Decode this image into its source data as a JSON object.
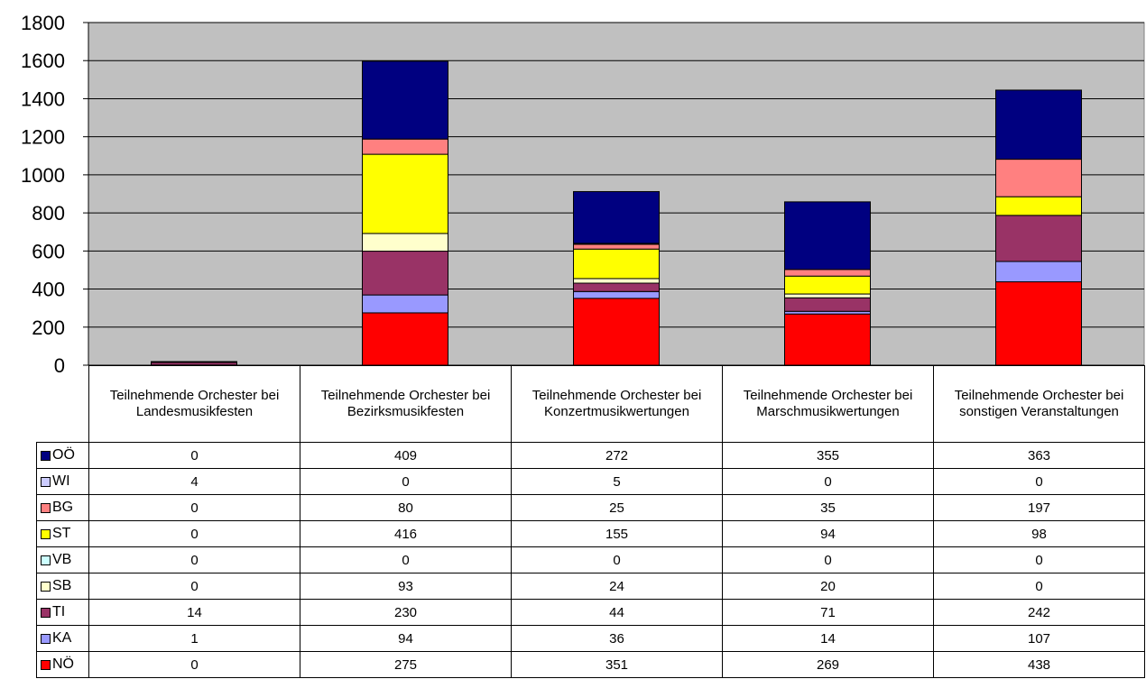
{
  "chart_data": {
    "type": "stacked_bar",
    "categories": [
      "Teilnehmende Orchester bei Landesmusikfesten",
      "Teilnehmende Orchester bei Bezirksmusikfesten",
      "Teilnehmende Orchester bei Konzertmusikwertungen",
      "Teilnehmende Orchester bei Marschmusikwertungen",
      "Teilnehmende Orchester bei sonstigen Veranstaltungen"
    ],
    "series": [
      {
        "name": "OÖ",
        "color": "#000080",
        "values": [
          0,
          409,
          272,
          355,
          363
        ]
      },
      {
        "name": "WI",
        "color": "#ccccff",
        "values": [
          4,
          0,
          5,
          0,
          0
        ]
      },
      {
        "name": "BG",
        "color": "#ff8080",
        "values": [
          0,
          80,
          25,
          35,
          197
        ]
      },
      {
        "name": "ST",
        "color": "#ffff00",
        "values": [
          0,
          416,
          155,
          94,
          98
        ]
      },
      {
        "name": "VB",
        "color": "#ccffff",
        "values": [
          0,
          0,
          0,
          0,
          0
        ]
      },
      {
        "name": "SB",
        "color": "#ffffcc",
        "values": [
          0,
          93,
          24,
          20,
          0
        ]
      },
      {
        "name": "TI",
        "color": "#993366",
        "values": [
          14,
          230,
          44,
          71,
          242
        ]
      },
      {
        "name": "KA",
        "color": "#9999ff",
        "values": [
          1,
          94,
          36,
          14,
          107
        ]
      },
      {
        "name": "NÖ",
        "color": "#ff0000",
        "values": [
          0,
          275,
          351,
          269,
          438
        ]
      }
    ],
    "ylim": [
      0,
      1800
    ],
    "yticks": [
      0,
      200,
      400,
      600,
      800,
      1000,
      1200,
      1400,
      1600,
      1800
    ],
    "grid": true,
    "plot_background": "#c0c0c0"
  }
}
